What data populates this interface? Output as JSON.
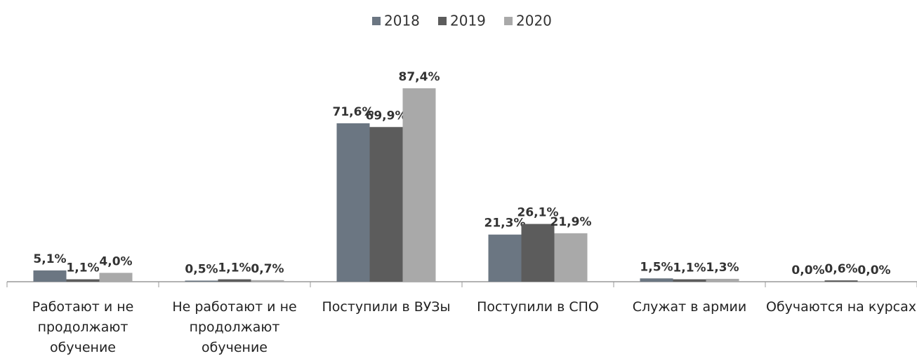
{
  "chart_data": {
    "type": "bar",
    "categories": [
      "Работают и не продолжают обучение",
      "Не работают и не продолжают обучение",
      "Поступили в ВУЗы",
      "Поступили в СПО",
      "Служат в армии",
      "Обучаются на курсах"
    ],
    "series": [
      {
        "name": "2018",
        "color": "#6b7682",
        "values": [
          5.1,
          0.5,
          71.6,
          21.3,
          1.5,
          0.0
        ],
        "value_labels": [
          "5,1%",
          "0,5%",
          "71,6%",
          "21,3%",
          "1,5%",
          "0,0%"
        ]
      },
      {
        "name": "2019",
        "color": "#5c5c5c",
        "values": [
          1.1,
          1.1,
          69.9,
          26.1,
          1.1,
          0.6
        ],
        "value_labels": [
          "1,1%",
          "1,1%",
          "69,9%",
          "26,1%",
          "1,1%",
          "0,6%"
        ]
      },
      {
        "name": "2020",
        "color": "#a9a9a9",
        "values": [
          4.0,
          0.7,
          87.4,
          21.9,
          1.3,
          0.0
        ],
        "value_labels": [
          "4,0%",
          "0,7%",
          "87,4%",
          "21,9%",
          "1,3%",
          "0,0%"
        ]
      }
    ],
    "legend": "top"
  }
}
